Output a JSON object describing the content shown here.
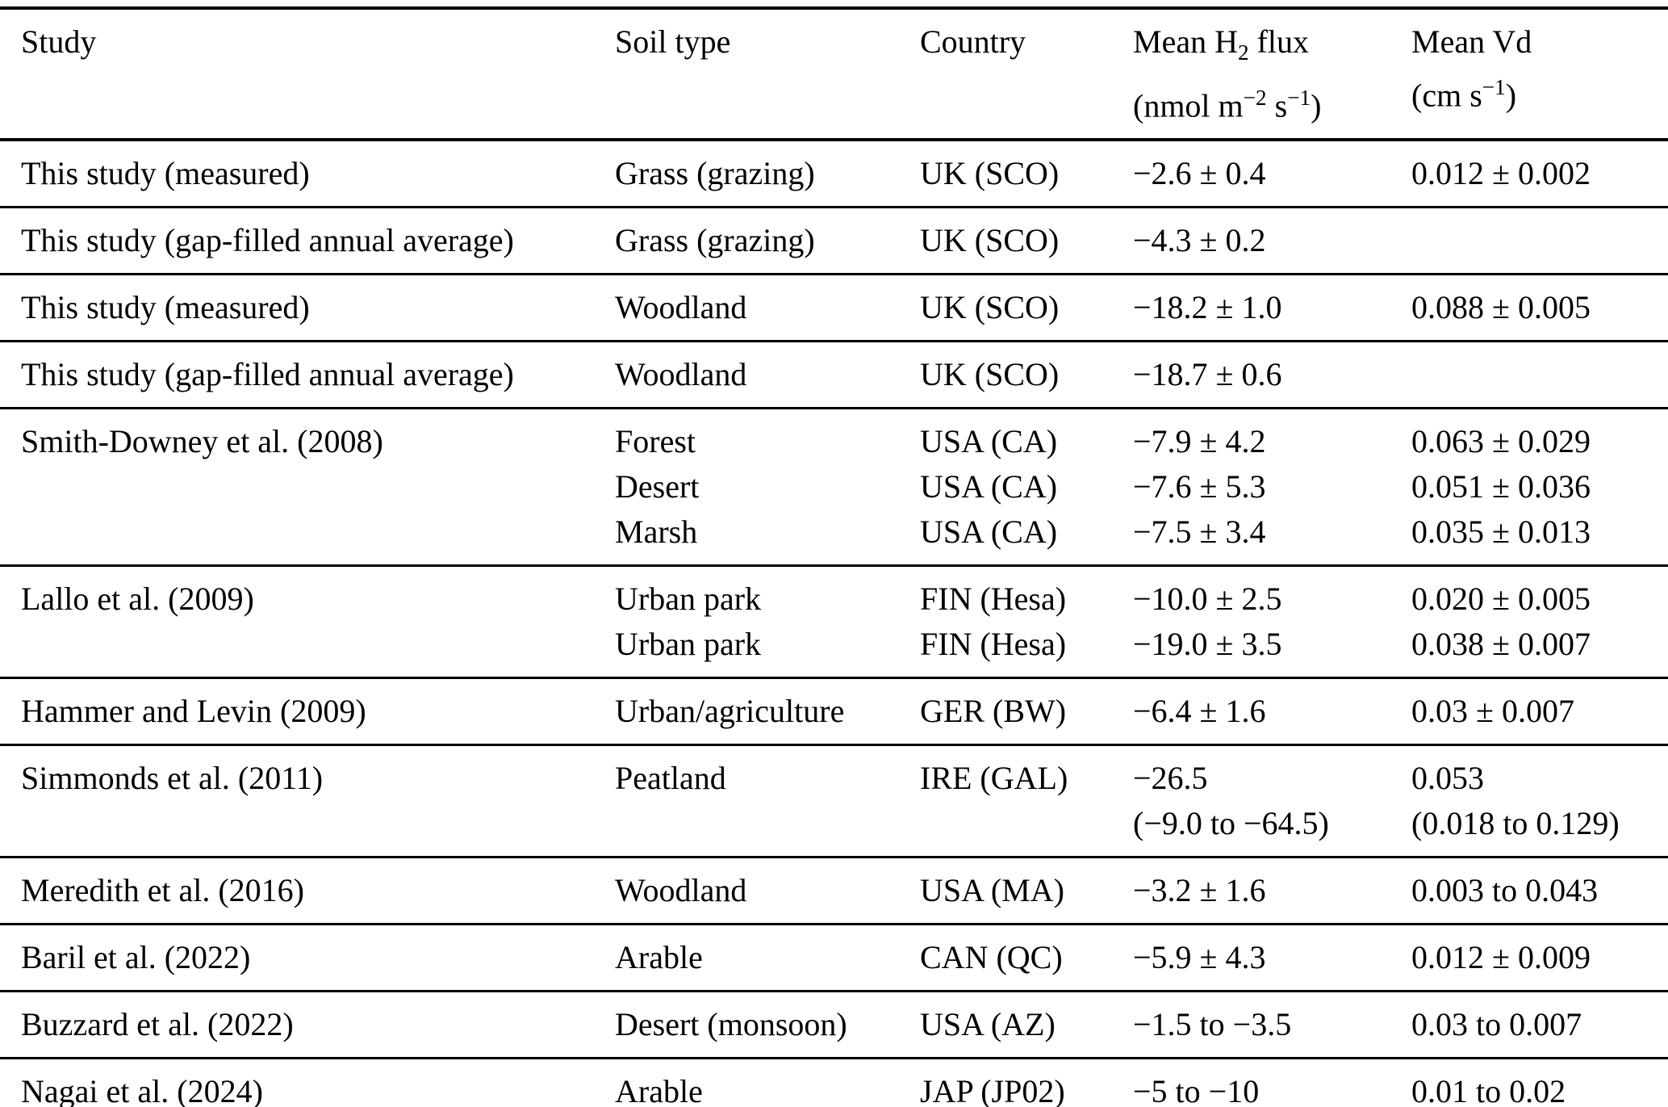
{
  "colors": {
    "background": "#ffffff",
    "text": "#000000",
    "rules": "#000000"
  },
  "table": {
    "header": {
      "study": "Study",
      "soil_type": "Soil type",
      "country": "Country",
      "flux_label_pre": "Mean H",
      "flux_label_sub": "2",
      "flux_label_post": " flux",
      "flux_unit_pre": "(nmol m",
      "flux_unit_sup1": "−2",
      "flux_unit_mid": " s",
      "flux_unit_sup2": "−1",
      "flux_unit_post": ")",
      "vd_label": "Mean Vd",
      "vd_unit_pre": "(cm s",
      "vd_unit_sup": "−1",
      "vd_unit_post": ")"
    },
    "rows": [
      {
        "study": [
          "This study (measured)"
        ],
        "soil_type": [
          "Grass (grazing)"
        ],
        "country": [
          "UK (SCO)"
        ],
        "flux": [
          "−2.6 ± 0.4"
        ],
        "vd": [
          "0.012 ± 0.002"
        ]
      },
      {
        "study": [
          "This study (gap-filled annual average)"
        ],
        "soil_type": [
          "Grass (grazing)"
        ],
        "country": [
          "UK (SCO)"
        ],
        "flux": [
          "−4.3 ± 0.2"
        ],
        "vd": [
          ""
        ]
      },
      {
        "study": [
          "This study (measured)"
        ],
        "soil_type": [
          "Woodland"
        ],
        "country": [
          "UK (SCO)"
        ],
        "flux": [
          "−18.2 ± 1.0"
        ],
        "vd": [
          "0.088 ± 0.005"
        ]
      },
      {
        "study": [
          "This study (gap-filled annual average)"
        ],
        "soil_type": [
          "Woodland"
        ],
        "country": [
          "UK (SCO)"
        ],
        "flux": [
          "−18.7 ± 0.6"
        ],
        "vd": [
          ""
        ]
      },
      {
        "study": [
          "Smith-Downey et al. (2008)"
        ],
        "soil_type": [
          "Forest",
          "Desert",
          "Marsh"
        ],
        "country": [
          "USA (CA)",
          "USA (CA)",
          "USA (CA)"
        ],
        "flux": [
          "−7.9 ± 4.2",
          "−7.6 ± 5.3",
          "−7.5 ± 3.4"
        ],
        "vd": [
          "0.063 ± 0.029",
          "0.051 ± 0.036",
          "0.035 ± 0.013"
        ]
      },
      {
        "study": [
          "Lallo et al. (2009)"
        ],
        "soil_type": [
          "Urban park",
          "Urban park"
        ],
        "country": [
          "FIN (Hesa)",
          "FIN (Hesa)"
        ],
        "flux": [
          "−10.0 ± 2.5",
          "−19.0 ± 3.5"
        ],
        "vd": [
          "0.020 ± 0.005",
          "0.038 ± 0.007"
        ]
      },
      {
        "study": [
          "Hammer and Levin (2009)"
        ],
        "soil_type": [
          "Urban/agriculture"
        ],
        "country": [
          "GER (BW)"
        ],
        "flux": [
          "−6.4 ± 1.6"
        ],
        "vd": [
          "0.03 ± 0.007"
        ]
      },
      {
        "study": [
          "Simmonds et al. (2011)"
        ],
        "soil_type": [
          "Peatland"
        ],
        "country": [
          "IRE (GAL)"
        ],
        "flux": [
          "−26.5",
          "(−9.0 to −64.5)"
        ],
        "vd": [
          "0.053",
          "(0.018 to 0.129)"
        ]
      },
      {
        "study": [
          "Meredith et al. (2016)"
        ],
        "soil_type": [
          "Woodland"
        ],
        "country": [
          "USA (MA)"
        ],
        "flux": [
          "−3.2 ± 1.6"
        ],
        "vd": [
          "0.003 to 0.043"
        ]
      },
      {
        "study": [
          "Baril et al. (2022)"
        ],
        "soil_type": [
          "Arable"
        ],
        "country": [
          "CAN (QC)"
        ],
        "flux": [
          "−5.9 ± 4.3"
        ],
        "vd": [
          "0.012 ± 0.009"
        ]
      },
      {
        "study": [
          "Buzzard et al. (2022)"
        ],
        "soil_type": [
          "Desert (monsoon)"
        ],
        "country": [
          "USA (AZ)"
        ],
        "flux": [
          "−1.5 to −3.5"
        ],
        "vd": [
          "0.03 to 0.007"
        ]
      },
      {
        "study": [
          "Nagai et al. (2024)"
        ],
        "soil_type": [
          "Arable"
        ],
        "country": [
          "JAP (JP02)"
        ],
        "flux": [
          "−5 to −10"
        ],
        "vd": [
          "0.01 to 0.02"
        ]
      }
    ]
  }
}
